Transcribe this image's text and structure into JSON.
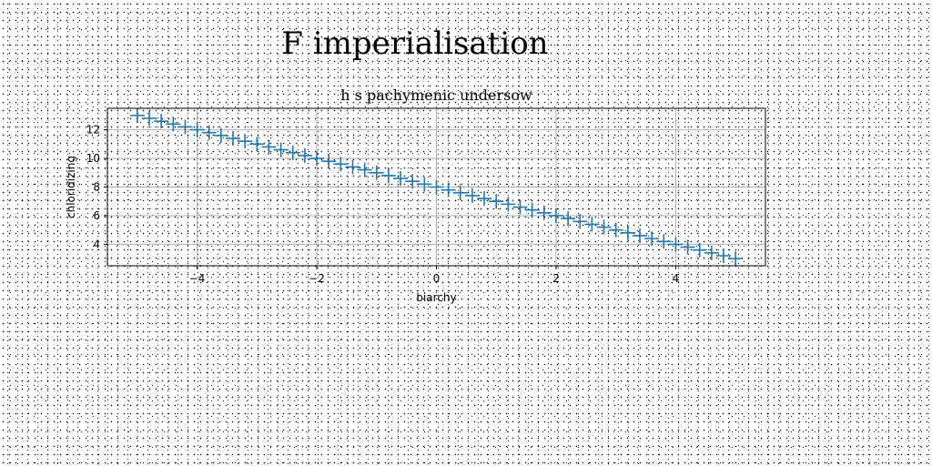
{
  "figure": {
    "title": "F imperialisation"
  },
  "chart_data": {
    "type": "scatter",
    "title": "h s pachymenic undersow",
    "xlabel": "biarchy",
    "ylabel": "chloridizing",
    "xlim": [
      -5.5,
      5.5
    ],
    "ylim": [
      2.5,
      13.5
    ],
    "xticks": [
      -4,
      -2,
      0,
      2,
      4
    ],
    "xtick_labels": [
      "−4",
      "−2",
      "0",
      "2",
      "4"
    ],
    "yticks": [
      4,
      6,
      8,
      10,
      12
    ],
    "ytick_labels": [
      "4",
      "6",
      "8",
      "10",
      "12"
    ],
    "grid": true,
    "marker": "+",
    "color": "#1f77b4",
    "series": [
      {
        "x": [
          -5.0,
          -4.8,
          -4.6,
          -4.4,
          -4.2,
          -4.0,
          -3.8,
          -3.6,
          -3.4,
          -3.2,
          -3.0,
          -2.8,
          -2.6,
          -2.4,
          -2.2,
          -2.0,
          -1.8,
          -1.6,
          -1.4,
          -1.2,
          -1.0,
          -0.8,
          -0.6,
          -0.4,
          -0.2,
          0.0,
          0.2,
          0.4,
          0.6,
          0.8,
          1.0,
          1.2,
          1.4,
          1.6,
          1.8,
          2.0,
          2.2,
          2.4,
          2.6,
          2.8,
          3.0,
          3.2,
          3.4,
          3.6,
          3.8,
          4.0,
          4.2,
          4.4,
          4.6,
          4.8,
          5.0
        ],
        "y": [
          13.0,
          12.8,
          12.6,
          12.4,
          12.2,
          12.0,
          11.8,
          11.6,
          11.4,
          11.2,
          11.0,
          10.8,
          10.6,
          10.4,
          10.2,
          10.0,
          9.8,
          9.6,
          9.4,
          9.2,
          9.0,
          8.8,
          8.6,
          8.4,
          8.2,
          8.0,
          7.8,
          7.6,
          7.4,
          7.2,
          7.0,
          6.8,
          6.6,
          6.4,
          6.2,
          6.0,
          5.8,
          5.6,
          5.4,
          5.2,
          5.0,
          4.8,
          4.6,
          4.4,
          4.2,
          4.0,
          3.8,
          3.6,
          3.4,
          3.2,
          3.0
        ]
      }
    ]
  }
}
